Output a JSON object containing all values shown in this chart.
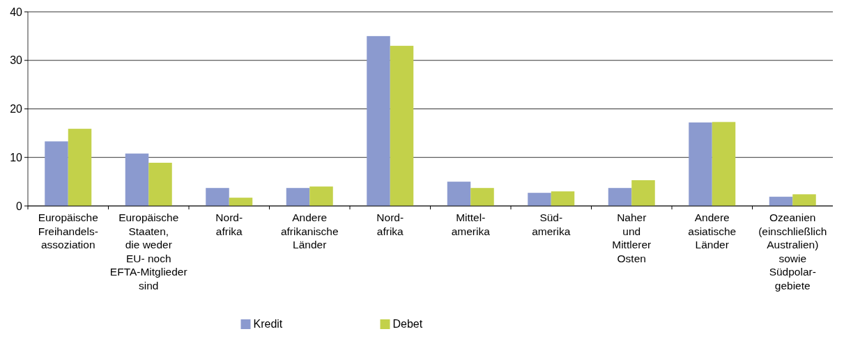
{
  "chart_data": {
    "type": "bar",
    "categories": [
      "Europäische\nFreihandels-\nassoziation",
      "Europäische\nStaaten,\ndie weder\nEU- noch\nEFTA-Mitglieder\nsind",
      "Nord-\nafrika",
      "Andere\nafrikanische\nLänder",
      "Nord-\nafrika",
      "Mittel-\namerika",
      "Süd-\namerika",
      "Naher\nund\nMittlerer\nOsten",
      "Andere\nasiatische\nLänder",
      "Ozeanien\n(einschließlich\nAustralien)\nsowie\nSüdpolar-\ngebiete"
    ],
    "series": [
      {
        "name": "Kredit",
        "color": "#8b9acf",
        "values": [
          13.3,
          10.8,
          3.7,
          3.7,
          35,
          5,
          2.7,
          3.7,
          17.2,
          1.9
        ]
      },
      {
        "name": "Debet",
        "color": "#c3d14a",
        "values": [
          15.9,
          8.9,
          1.7,
          4,
          33,
          3.7,
          3,
          5.3,
          17.3,
          2.4
        ]
      }
    ],
    "ylim": [
      0,
      40
    ],
    "yticks": [
      0,
      10,
      20,
      30,
      40
    ],
    "grid": "y",
    "legend": "bottom"
  }
}
